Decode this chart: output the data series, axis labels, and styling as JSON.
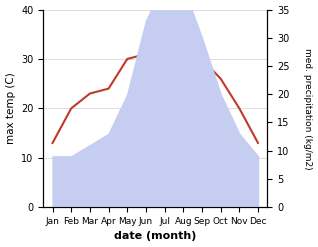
{
  "months": [
    "Jan",
    "Feb",
    "Mar",
    "Apr",
    "May",
    "Jun",
    "Jul",
    "Aug",
    "Sep",
    "Oct",
    "Nov",
    "Dec"
  ],
  "precipitation": [
    9,
    9,
    11,
    13,
    20,
    33,
    40,
    39,
    30,
    20,
    13,
    9
  ],
  "temperature": [
    13,
    20,
    23,
    24,
    30,
    31,
    35,
    35,
    30,
    26,
    20,
    13
  ],
  "temp_color": "#c0392b",
  "precip_fill_color": "#c5cef0",
  "precip_edge_color": "#aab4e8",
  "temp_ylim": [
    0,
    40
  ],
  "precip_ylim": [
    0,
    35
  ],
  "temp_yticks": [
    0,
    10,
    20,
    30,
    40
  ],
  "precip_yticks": [
    0,
    5,
    10,
    15,
    20,
    25,
    30,
    35
  ],
  "xlabel": "date (month)",
  "ylabel_left": "max temp (C)",
  "ylabel_right": "med. precipitation (kg/m2)",
  "bg_color": "#ffffff",
  "grid_color": "#d0d0d0"
}
